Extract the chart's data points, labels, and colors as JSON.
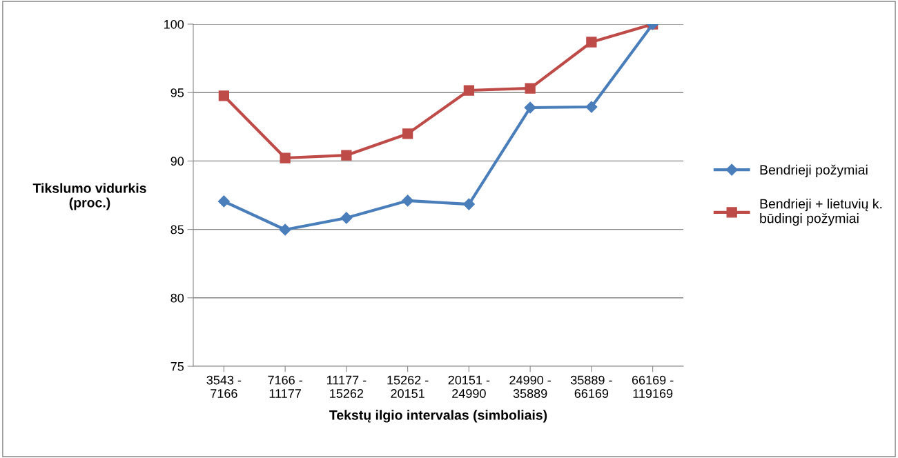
{
  "chart_data": {
    "type": "line",
    "categories": [
      "3543 -\n7166",
      "7166 -\n11177",
      "11177 -\n15262",
      "15262 -\n20151",
      "20151 -\n24990",
      "24990 -\n35889",
      "35889 -\n66169",
      "66169 -\n119169"
    ],
    "series": [
      {
        "name": "Bendrieji požymiai",
        "color": "#4a7ebb",
        "marker": "diamond",
        "values": [
          87.05,
          84.98,
          85.84,
          87.1,
          86.84,
          93.9,
          93.95,
          100
        ]
      },
      {
        "name": "Bendrieji + lietuvių k.\nbūdingi požymiai",
        "color": "#be4b48",
        "marker": "square",
        "values": [
          94.76,
          90.22,
          90.42,
          91.99,
          95.16,
          95.31,
          98.69,
          100
        ]
      }
    ],
    "xlabel": "Tekstų ilgio intervalas (simboliais)",
    "ylabel": "Tikslumo vidurkis\n(proc.)",
    "ylim": [
      75,
      100
    ],
    "yticks": [
      75,
      80,
      85,
      90,
      95,
      100
    ],
    "grid": "y",
    "legend": "right",
    "line_style": "solid"
  }
}
